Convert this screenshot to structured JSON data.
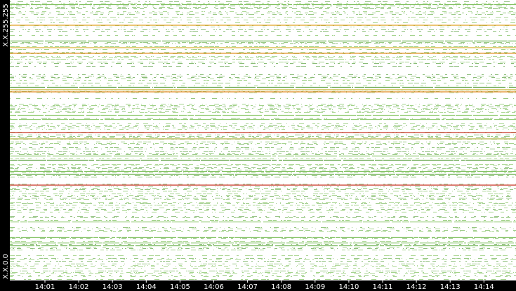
{
  "y_axis": {
    "top_label": "X.X.255.255",
    "bottom_label": "X.X.0.0"
  },
  "x_axis": {
    "labels": [
      "14:01",
      "14:02",
      "14:03",
      "14:04",
      "14:05",
      "14:06",
      "14:07",
      "14:08",
      "14:09",
      "14:10",
      "14:11",
      "14:12",
      "14:13",
      "14:14"
    ]
  }
}
